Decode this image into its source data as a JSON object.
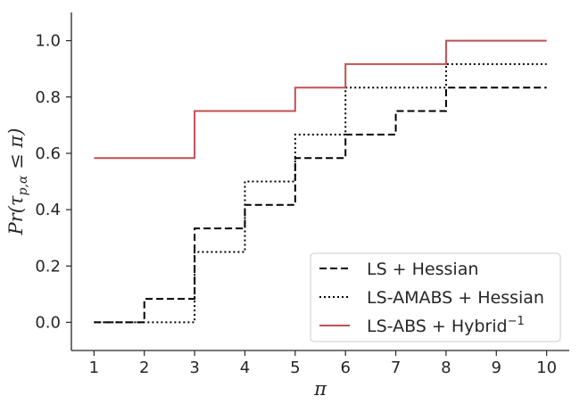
{
  "chart_data": {
    "type": "line",
    "step": "post",
    "xlabel": "π",
    "ylabel": "Pr(τ",
    "ylabel_sub": "p,α",
    "ylabel_tail": " ≤ π)",
    "xlim": [
      0.55,
      10.45
    ],
    "ylim": [
      -0.1,
      1.1
    ],
    "xticks": [
      1,
      2,
      3,
      4,
      5,
      6,
      7,
      8,
      9,
      10
    ],
    "yticks": [
      0.0,
      0.2,
      0.4,
      0.6,
      0.8,
      1.0
    ],
    "ytick_labels": [
      "0.0",
      "0.2",
      "0.4",
      "0.6",
      "0.8",
      "1.0"
    ],
    "grid": false,
    "legend_position": "lower-right",
    "series": [
      {
        "name": "LS + Hessian",
        "style": "dashed",
        "color": "#000000",
        "x": [
          1,
          2,
          3,
          4,
          5,
          6,
          7,
          8,
          10
        ],
        "y": [
          0.0,
          0.0833,
          0.3333,
          0.4167,
          0.5833,
          0.6667,
          0.75,
          0.8333,
          0.8333
        ]
      },
      {
        "name": "LS-AMABS + Hessian",
        "style": "dotted",
        "color": "#000000",
        "x": [
          1,
          3,
          4,
          5,
          6,
          8,
          10
        ],
        "y": [
          0.0,
          0.25,
          0.5,
          0.6667,
          0.8333,
          0.9167,
          0.9167
        ]
      },
      {
        "name": "LS-ABS + Hybrid",
        "name_sup": "−1",
        "style": "solid",
        "color": "#c44e52",
        "x": [
          1,
          3,
          5,
          6,
          8,
          10
        ],
        "y": [
          0.5833,
          0.75,
          0.8333,
          0.9167,
          1.0,
          1.0
        ]
      }
    ]
  }
}
